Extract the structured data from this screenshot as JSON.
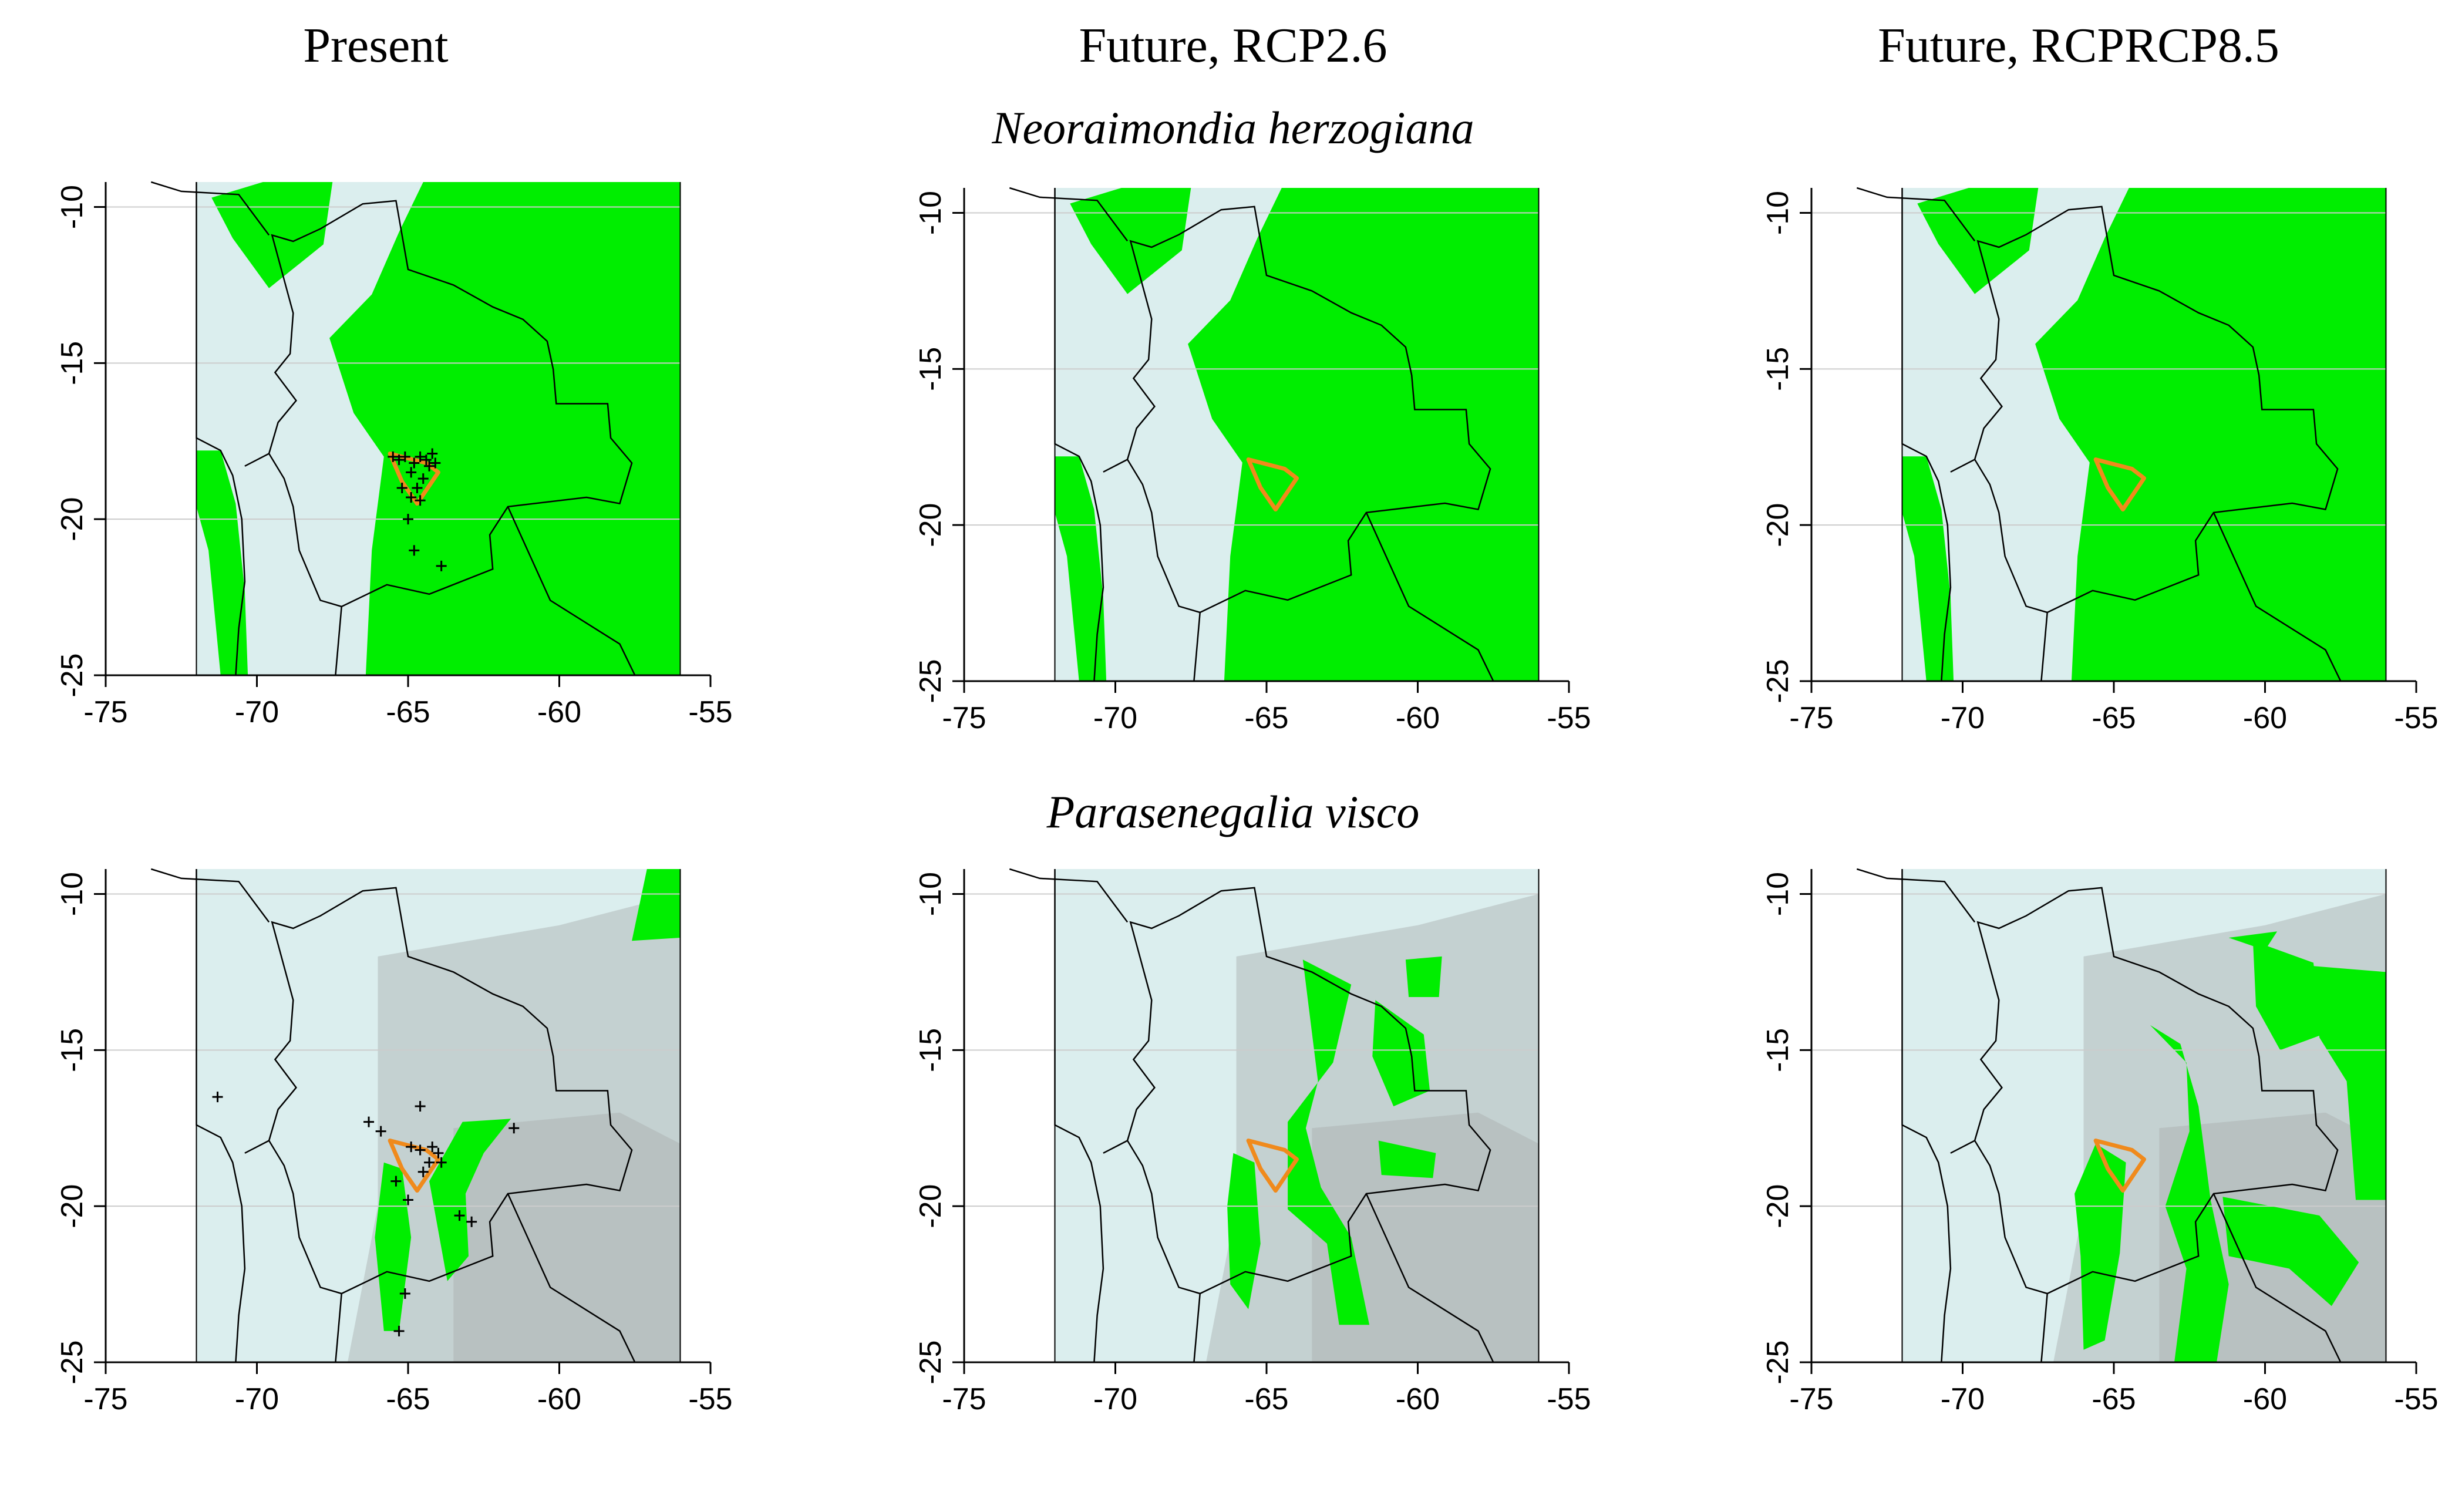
{
  "column_titles": [
    "Present",
    "Future, RCP2.6",
    "Future, RCPRCP8.5"
  ],
  "row_titles": [
    "Neoraimondia herzogiana",
    "Parasenegalia visco"
  ],
  "axes": {
    "x_ticks": [
      "-75",
      "-70",
      "-65",
      "-60",
      "-55"
    ],
    "y_ticks": [
      "-10",
      "-15",
      "-20",
      "-25"
    ],
    "x_range": [
      -75,
      -55
    ],
    "y_range": [
      -25,
      -9.2
    ]
  },
  "colors": {
    "background_sea": "#dbeeee",
    "suitable_habitat": "#00ee00",
    "elevation_gray": "#9a9a9a",
    "border": "#000000",
    "range_polygon": "#f08a1c",
    "occurrence_marker": "#000000",
    "gridline": "#cccccc"
  },
  "panels": [
    {
      "row": 0,
      "col": 0,
      "habitat_coverage": "high",
      "occurrences_shown": true
    },
    {
      "row": 0,
      "col": 1,
      "habitat_coverage": "high",
      "occurrences_shown": false
    },
    {
      "row": 0,
      "col": 2,
      "habitat_coverage": "high",
      "occurrences_shown": false
    },
    {
      "row": 1,
      "col": 0,
      "habitat_coverage": "low",
      "occurrences_shown": true
    },
    {
      "row": 1,
      "col": 1,
      "habitat_coverage": "medium",
      "occurrences_shown": false
    },
    {
      "row": 1,
      "col": 2,
      "habitat_coverage": "medium",
      "occurrences_shown": false
    }
  ]
}
